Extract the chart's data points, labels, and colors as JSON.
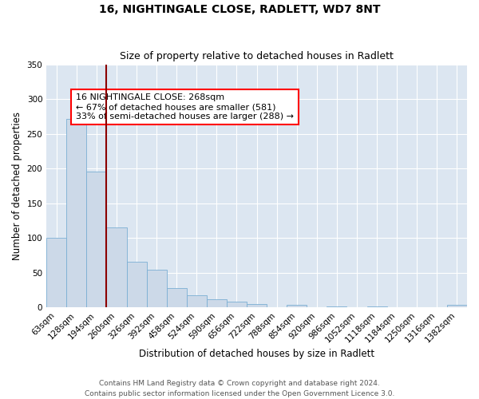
{
  "title": "16, NIGHTINGALE CLOSE, RADLETT, WD7 8NT",
  "subtitle": "Size of property relative to detached houses in Radlett",
  "xlabel": "Distribution of detached houses by size in Radlett",
  "ylabel": "Number of detached properties",
  "bar_color": "#ccd9e8",
  "bar_edge_color": "#7bafd4",
  "background_color": "#dce6f1",
  "categories": [
    "63sqm",
    "128sqm",
    "194sqm",
    "260sqm",
    "326sqm",
    "392sqm",
    "458sqm",
    "524sqm",
    "590sqm",
    "656sqm",
    "722sqm",
    "788sqm",
    "854sqm",
    "920sqm",
    "986sqm",
    "1052sqm",
    "1118sqm",
    "1184sqm",
    "1250sqm",
    "1316sqm",
    "1382sqm"
  ],
  "values": [
    100,
    272,
    196,
    115,
    66,
    54,
    28,
    17,
    11,
    8,
    5,
    0,
    4,
    0,
    1,
    0,
    1,
    0,
    0,
    0,
    4
  ],
  "ylim": [
    0,
    350
  ],
  "yticks": [
    0,
    50,
    100,
    150,
    200,
    250,
    300,
    350
  ],
  "annotation_line1": "16 NIGHTINGALE CLOSE: 268sqm",
  "annotation_line2": "← 67% of detached houses are smaller (581)",
  "annotation_line3": "33% of semi-detached houses are larger (288) →",
  "footer_line1": "Contains HM Land Registry data © Crown copyright and database right 2024.",
  "footer_line2": "Contains public sector information licensed under the Open Government Licence 3.0.",
  "title_fontsize": 10,
  "subtitle_fontsize": 9,
  "axis_label_fontsize": 8.5,
  "tick_fontsize": 7.5,
  "annotation_fontsize": 8,
  "footer_fontsize": 6.5
}
